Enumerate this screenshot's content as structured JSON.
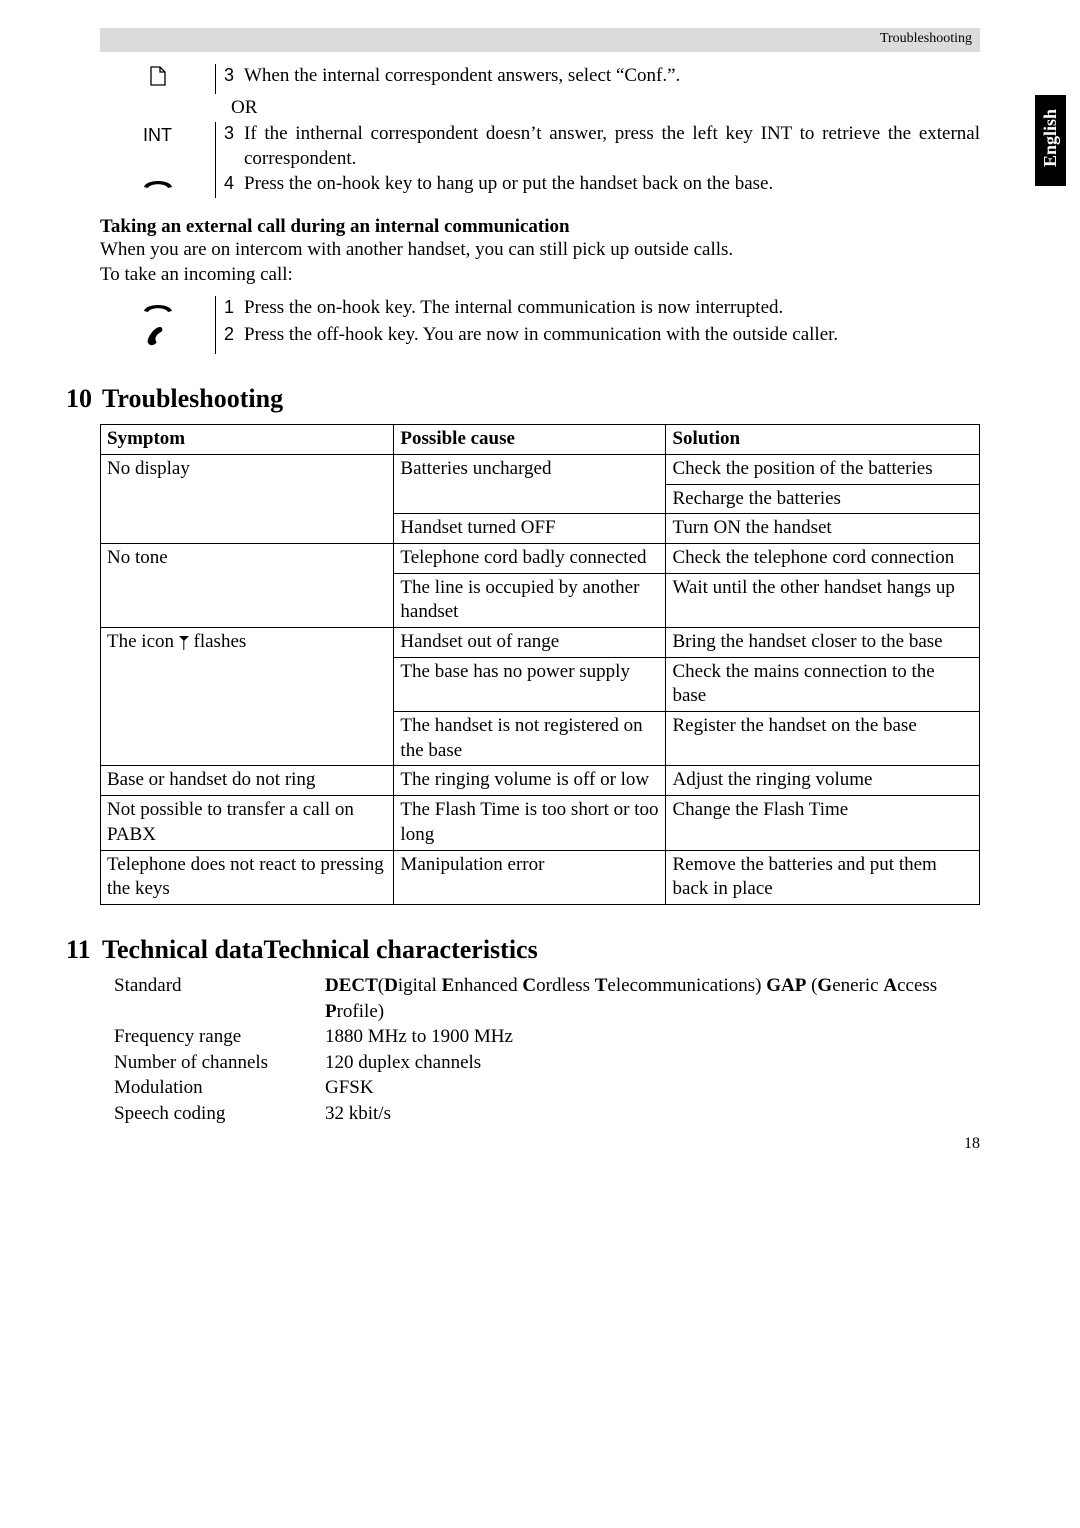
{
  "header": {
    "label": "Troubleshooting"
  },
  "sideTab": "English",
  "block1": {
    "rows": [
      {
        "icon_svg": "page",
        "num": "3",
        "text": "When the internal correspondent answers, select “Conf.”."
      }
    ],
    "orText": "OR",
    "rows2": [
      {
        "icon_text": "INT",
        "num": "3",
        "text": "If the inthernal correspondent doesn’t answer, press the left key INT to retrieve the external correspondent."
      },
      {
        "icon_svg": "onhook",
        "num": "4",
        "text": "Press the on-hook key to hang up or put the handset back on the base."
      }
    ]
  },
  "subHeading": "Taking an external call during an internal communication",
  "para1": "When you are on intercom with another handset, you can still pick up outside calls.",
  "para2": "To take an incoming call:",
  "block2": {
    "rows": [
      {
        "icon_svg": "onhook",
        "num": "1",
        "text": "Press the on-hook key. The internal communication is now interrupted."
      },
      {
        "icon_svg": "offhook",
        "num": "2",
        "text": "Press the off-hook key. You are now in communication with the outside caller."
      }
    ]
  },
  "section10": {
    "num": "10",
    "title": "Troubleshooting"
  },
  "table": {
    "headers": [
      "Symptom",
      "Possible cause",
      "Solution"
    ],
    "rows": [
      {
        "s": "No display",
        "c": "Batteries uncharged",
        "o": "Check the position of the batteries",
        "sb": false,
        "cb": false
      },
      {
        "s": "",
        "c": "",
        "o": "Recharge the batteries",
        "sb": false,
        "cb": true
      },
      {
        "s": "",
        "c": "Handset turned OFF",
        "o": "Turn ON the handset",
        "sb": true
      },
      {
        "s": "No tone",
        "c": "Telephone cord badly  connected",
        "o": "Check the telephone cord connection",
        "sb": false
      },
      {
        "s": "",
        "c": "The line is occupied by another handset",
        "o": "Wait until the other handset hangs up",
        "sb": true
      },
      {
        "s_icon": true,
        "s_pre": "The icon  ",
        "s_post": "   flashes",
        "c": "Handset out of range",
        "o": "Bring the handset closer to the base",
        "sb": false
      },
      {
        "s": "",
        "c": "The base has no power supply",
        "o": "Check the mains connection to the base",
        "sb": false
      },
      {
        "s": "",
        "c": "The handset is not registered on the base",
        "o": "Register the handset on the base",
        "sb": true
      },
      {
        "s": "Base or handset do not ring",
        "c": "The ringing volume is off or low",
        "o": "Adjust the ringing volume",
        "sb": true
      },
      {
        "s": "Not possible to transfer a call on PABX",
        "c": "The Flash Time is too short or too long",
        "o": "Change the Flash Time",
        "sb": true
      },
      {
        "s": "Telephone does not react to pressing the keys",
        "c": "Manipulation error",
        "o": "Remove the batteries and put them back in place",
        "sb": true
      }
    ]
  },
  "section11": {
    "num": "11",
    "title": "Technical dataTechnical characteristics"
  },
  "tech": [
    {
      "label": "Standard",
      "html": true,
      "value": "<b>DECT</b>(<b>D</b>igital <b>E</b>nhanced <b>C</b>ordless <b>T</b>elecommunications) <b>GAP</b> (<b>G</b>eneric <b>A</b>ccess <b>P</b>rofile)"
    },
    {
      "label": "Frequency range",
      "value": "1880 MHz to 1900 MHz"
    },
    {
      "label": "Number of channels",
      "value": "120 duplex channels"
    },
    {
      "label": "Modulation",
      "value": "GFSK"
    },
    {
      "label": "Speech coding",
      "value": "32 kbit/s"
    }
  ],
  "pageNumber": "18"
}
